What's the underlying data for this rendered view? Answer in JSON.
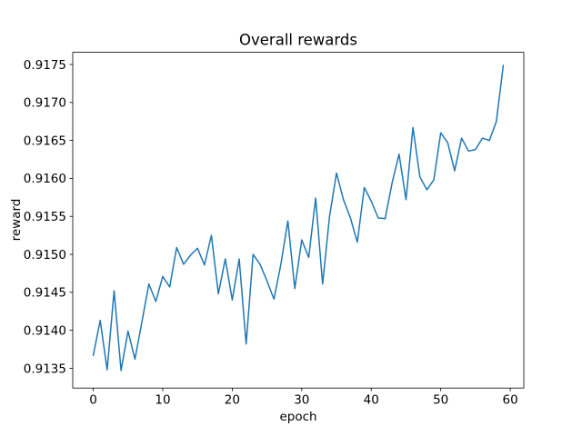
{
  "chart": {
    "title": "Overall rewards",
    "xlabel": "epoch",
    "ylabel": "reward"
  },
  "chart_data": {
    "type": "line",
    "title": "Overall rewards",
    "xlabel": "epoch",
    "ylabel": "reward",
    "legend": null,
    "grid": false,
    "line_color": "#1f77b4",
    "line_width": 1.5,
    "background": "#ffffff",
    "xlim": [
      -2.95,
      61.95
    ],
    "ylim": [
      0.91324,
      0.91766
    ],
    "x_ticks": [
      0,
      10,
      20,
      30,
      40,
      50,
      60
    ],
    "x_tick_labels": [
      "0",
      "10",
      "20",
      "30",
      "40",
      "50",
      "60"
    ],
    "y_ticks": [
      0.9135,
      0.914,
      0.9145,
      0.915,
      0.9155,
      0.916,
      0.9165,
      0.917,
      0.9175
    ],
    "y_tick_labels": [
      "0.9135",
      "0.9140",
      "0.9145",
      "0.9150",
      "0.9155",
      "0.9160",
      "0.9165",
      "0.9170",
      "0.9175"
    ],
    "x": [
      0,
      1,
      2,
      3,
      4,
      5,
      6,
      7,
      8,
      9,
      10,
      11,
      12,
      13,
      14,
      15,
      16,
      17,
      18,
      19,
      20,
      21,
      22,
      23,
      24,
      25,
      26,
      27,
      28,
      29,
      30,
      31,
      32,
      33,
      34,
      35,
      36,
      37,
      38,
      39,
      40,
      41,
      42,
      43,
      44,
      45,
      46,
      47,
      48,
      49,
      50,
      51,
      52,
      53,
      54,
      55,
      56,
      57,
      58,
      59
    ],
    "y": [
      0.91367,
      0.91413,
      0.91348,
      0.91452,
      0.91347,
      0.91399,
      0.91362,
      0.91411,
      0.91461,
      0.91438,
      0.91471,
      0.91457,
      0.91509,
      0.91487,
      0.91499,
      0.91508,
      0.91486,
      0.91525,
      0.91448,
      0.91494,
      0.9144,
      0.91494,
      0.91382,
      0.915,
      0.91487,
      0.91465,
      0.91441,
      0.91487,
      0.91544,
      0.91455,
      0.91519,
      0.91496,
      0.91574,
      0.91461,
      0.9155,
      0.91607,
      0.91572,
      0.91548,
      0.91516,
      0.91588,
      0.9157,
      0.91548,
      0.91547,
      0.91594,
      0.91632,
      0.91572,
      0.91667,
      0.91602,
      0.91585,
      0.91598,
      0.9166,
      0.91647,
      0.9161,
      0.91653,
      0.91636,
      0.91638,
      0.91653,
      0.9165,
      0.91675,
      0.91749
    ]
  }
}
